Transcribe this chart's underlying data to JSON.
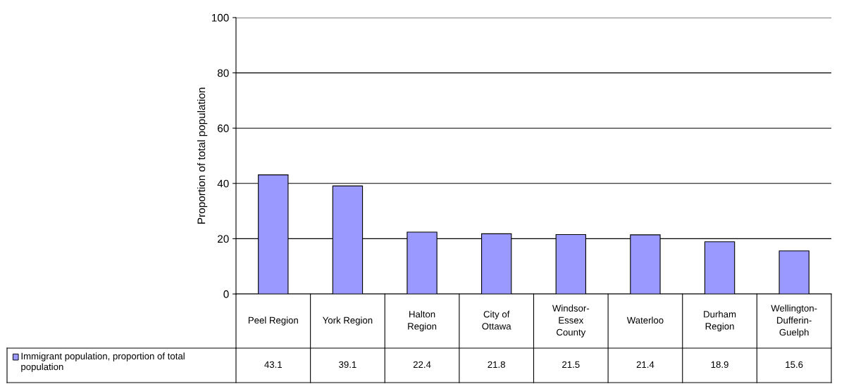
{
  "chart_data": {
    "type": "bar",
    "ylabel": "Proportion of total population",
    "categories": [
      "Peel Region",
      "York Region",
      "Halton Region",
      "City of Ottawa",
      "Windsor-Essex County",
      "Waterloo",
      "Durham Region",
      "Wellington-Dufferin-Guelph"
    ],
    "series": [
      {
        "name": "Immigrant population, proportion of total population",
        "color": "#9999ff",
        "values": [
          43.1,
          39.1,
          22.4,
          21.8,
          21.5,
          21.4,
          18.9,
          15.6
        ]
      }
    ],
    "ylim": [
      0,
      100
    ],
    "yticks": [
      0,
      20,
      40,
      60,
      80,
      100
    ],
    "grid": "y",
    "legend": "bottom left",
    "data_labels": true
  }
}
